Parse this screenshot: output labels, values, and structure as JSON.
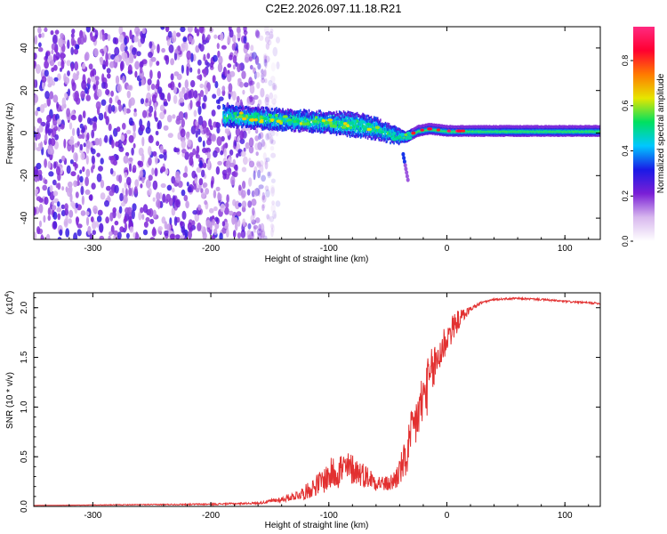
{
  "title": "C2E2.2026.097.11.18.R21",
  "chart_data": [
    {
      "type": "heatmap",
      "xlabel": "Height of straight line (km)",
      "ylabel": "Frequency (Hz)",
      "xlim": [
        -350,
        130
      ],
      "ylim": [
        -50,
        50
      ],
      "xticks": [
        -300,
        -200,
        -100,
        0,
        100
      ],
      "yticks": [
        -40,
        -20,
        0,
        20,
        40
      ],
      "colorbar": {
        "label": "Normalized spectral amplitude",
        "range": [
          0.0,
          0.95
        ],
        "ticks": [
          0.0,
          0.2,
          0.4,
          0.6,
          0.8
        ],
        "colors": [
          "#ffffff",
          "#d8b8ee",
          "#7a1fd6",
          "#1a1ae6",
          "#00c8ff",
          "#00e060",
          "#e6e600",
          "#ff7a00",
          "#ff0030",
          "#ff2a80"
        ]
      },
      "features": {
        "noise_region_x": [
          -350,
          -155
        ],
        "signal_band": {
          "x": [
            -190,
            -160,
            -130,
            -100,
            -80,
            -60,
            -45,
            -35,
            -25,
            -15,
            0,
            50,
            130
          ],
          "center_hz": [
            8,
            7,
            6,
            5,
            4,
            2,
            -1,
            -2,
            1,
            2,
            1,
            1,
            1
          ],
          "half_width_hz": [
            4,
            4,
            4,
            4,
            5,
            4,
            3,
            2,
            2,
            2,
            2,
            2,
            2
          ]
        },
        "spur": {
          "x": [
            -37,
            -33
          ],
          "hz": [
            -10,
            -22
          ]
        }
      }
    },
    {
      "type": "line",
      "xlabel": "Height of straight line (km)",
      "ylabel": "SNR (10 * v/v)",
      "multiplier": "(x10",
      "multiplier_exp": "4",
      "multiplier_close": ")",
      "xlim": [
        -350,
        130
      ],
      "ylim": [
        0.0,
        2.15
      ],
      "xticks": [
        -300,
        -200,
        -100,
        0,
        100
      ],
      "yticks": [
        "0.0",
        "0.5",
        "1.0",
        "1.5",
        "2.0"
      ],
      "series": [
        {
          "name": "SNR",
          "color": "#e23030",
          "base_x": [
            -350,
            -200,
            -160,
            -140,
            -120,
            -105,
            -95,
            -80,
            -70,
            -60,
            -50,
            -45,
            -35,
            -28,
            -20,
            -10,
            0,
            10,
            20,
            30,
            40,
            60,
            80,
            100,
            130
          ],
          "base_y": [
            0.01,
            0.02,
            0.03,
            0.06,
            0.12,
            0.22,
            0.3,
            0.33,
            0.28,
            0.22,
            0.2,
            0.22,
            0.4,
            0.7,
            1.0,
            1.35,
            1.65,
            1.85,
            1.98,
            2.05,
            2.08,
            2.09,
            2.08,
            2.06,
            2.04
          ],
          "noise_x": [
            -350,
            -160,
            -130,
            -110,
            -90,
            -75,
            -60,
            -50,
            -40,
            -30,
            -20,
            -10,
            0,
            10,
            20,
            35,
            130
          ],
          "noise_amp": [
            0.0,
            0.02,
            0.08,
            0.22,
            0.4,
            0.28,
            0.18,
            0.15,
            0.3,
            0.55,
            0.6,
            0.5,
            0.35,
            0.2,
            0.05,
            0.02,
            0.02
          ]
        }
      ]
    }
  ]
}
